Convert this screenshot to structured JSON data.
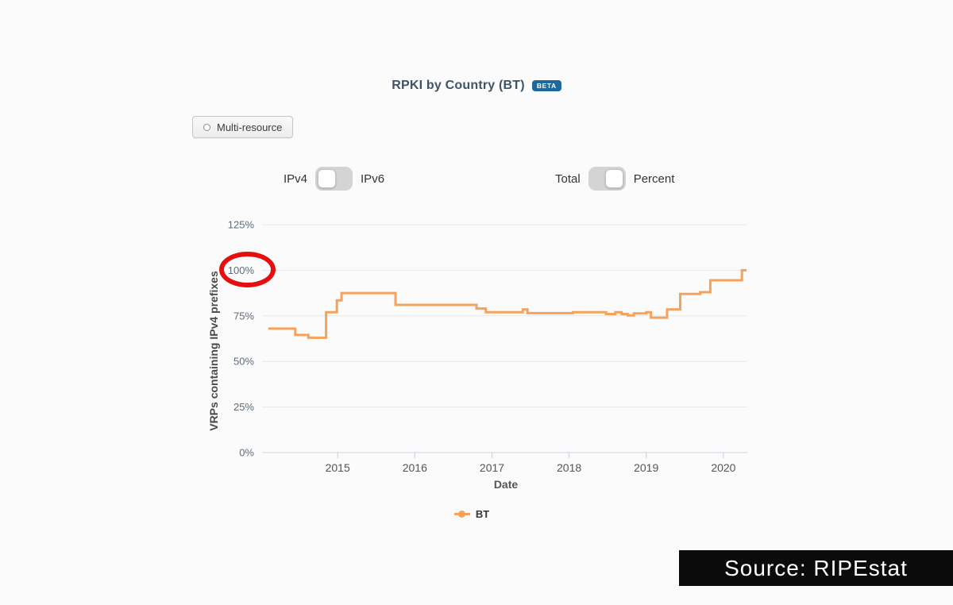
{
  "header": {
    "title": "RPKI by Country (BT)",
    "beta_label": "BETA"
  },
  "controls": {
    "multi_resource_label": "Multi-resource",
    "ip_toggle": {
      "left": "IPv4",
      "right": "IPv6",
      "selected": "IPv4"
    },
    "metric_toggle": {
      "left": "Total",
      "right": "Percent",
      "selected": "Percent"
    }
  },
  "chart_data": {
    "type": "line",
    "line_style": "step-after",
    "xlabel": "Date",
    "ylabel": "VRPs containing IPv4 prefixes",
    "xlim": [
      2014.02,
      2020.31
    ],
    "ylim": [
      0,
      125
    ],
    "x_ticks": [
      2015,
      2016,
      2017,
      2018,
      2019,
      2020
    ],
    "y_ticks": [
      0,
      25,
      50,
      75,
      100,
      125
    ],
    "y_tick_suffix": "%",
    "grid": "horizontal",
    "legend_position": "bottom-center",
    "series": [
      {
        "name": "BT",
        "color": "#f5a35c",
        "points": [
          [
            2014.1,
            68
          ],
          [
            2014.45,
            64.5
          ],
          [
            2014.62,
            63
          ],
          [
            2014.85,
            77
          ],
          [
            2014.99,
            83.5
          ],
          [
            2015.05,
            87.5
          ],
          [
            2015.75,
            81
          ],
          [
            2016.8,
            79
          ],
          [
            2016.92,
            77
          ],
          [
            2017.4,
            78.5
          ],
          [
            2017.46,
            76.5
          ],
          [
            2018.05,
            77
          ],
          [
            2018.48,
            76
          ],
          [
            2018.6,
            77
          ],
          [
            2018.68,
            76
          ],
          [
            2018.76,
            75.2
          ],
          [
            2018.84,
            76.3
          ],
          [
            2019.0,
            77
          ],
          [
            2019.06,
            74
          ],
          [
            2019.27,
            78.5
          ],
          [
            2019.44,
            87
          ],
          [
            2019.7,
            88
          ],
          [
            2019.83,
            94.5
          ],
          [
            2020.24,
            100
          ],
          [
            2020.3,
            100
          ]
        ]
      }
    ],
    "annotation": {
      "shape": "ellipse",
      "circled_label": "100%",
      "color": "#e60f0f"
    }
  },
  "legend": {
    "items": [
      {
        "label": "BT",
        "color": "#f5a35c"
      }
    ]
  },
  "source": {
    "label": "Source: RIPEstat"
  },
  "colors": {
    "background": "#fbfbfb",
    "title": "#3e5366",
    "beta_badge": "#1e699b",
    "series_line": "#f5a35c",
    "gridline": "#e8e8e8",
    "axis_line": "#ccd6eb",
    "annotation": "#e60f0f",
    "banner_bg": "#0b0b0b"
  }
}
